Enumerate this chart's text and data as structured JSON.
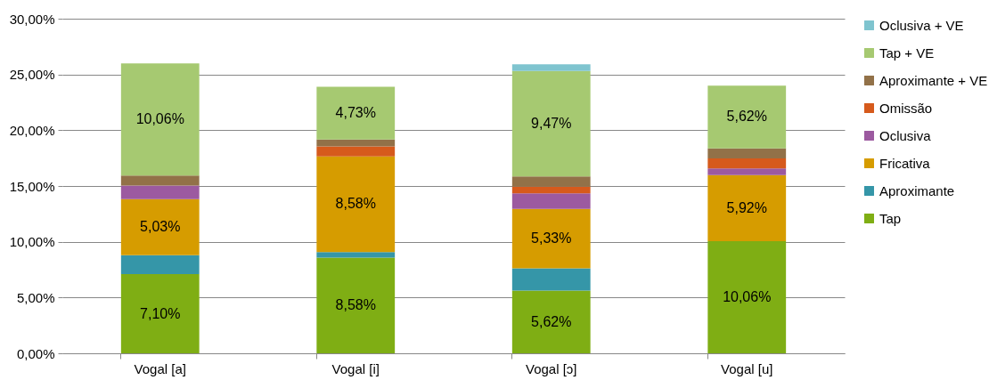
{
  "chart_data": {
    "type": "bar",
    "stacked": true,
    "categories": [
      "Vogal [a]",
      "Vogal [i]",
      "Vogal [ɔ]",
      "Vogal [u]"
    ],
    "series": [
      {
        "name": "Tap",
        "color": "#7fae14",
        "values": [
          7.1,
          8.58,
          5.62,
          10.06
        ],
        "value_labels": [
          "7,10%",
          "8,58%",
          "5,62%",
          "10,06%"
        ]
      },
      {
        "name": "Aproximante",
        "color": "#3596a8",
        "values": [
          1.7,
          0.5,
          2.0,
          0
        ],
        "value_labels": [
          null,
          null,
          null,
          null
        ]
      },
      {
        "name": "Fricativa",
        "color": "#d69c00",
        "values": [
          5.03,
          8.58,
          5.33,
          5.92
        ],
        "value_labels": [
          "5,03%",
          "8,58%",
          "5,33%",
          "5,92%"
        ]
      },
      {
        "name": "Oclusiva",
        "color": "#9c5aa0",
        "values": [
          1.2,
          0,
          1.4,
          0.6
        ],
        "value_labels": [
          null,
          null,
          null,
          null
        ]
      },
      {
        "name": "Omissão",
        "color": "#d65a1c",
        "values": [
          0,
          0.9,
          0.6,
          0.9
        ],
        "value_labels": [
          null,
          null,
          null,
          null
        ]
      },
      {
        "name": "Aproximante + VE",
        "color": "#927148",
        "values": [
          0.9,
          0.6,
          0.9,
          0.9
        ],
        "value_labels": [
          null,
          null,
          null,
          null
        ]
      },
      {
        "name": "Tap + VE",
        "color": "#a6c971",
        "values": [
          10.06,
          4.73,
          9.47,
          5.62
        ],
        "value_labels": [
          "10,06%",
          "4,73%",
          "9,47%",
          "5,62%"
        ]
      },
      {
        "name": "Oclusiva + VE",
        "color": "#7fc4cf",
        "values": [
          0,
          0,
          0.6,
          0
        ],
        "value_labels": [
          null,
          null,
          null,
          null
        ]
      }
    ],
    "ylim": [
      0,
      30
    ],
    "yticks": [
      {
        "value": 0,
        "label": "0,00%"
      },
      {
        "value": 5,
        "label": "5,00%"
      },
      {
        "value": 10,
        "label": "10,00%"
      },
      {
        "value": 15,
        "label": "15,00%"
      },
      {
        "value": 20,
        "label": "20,00%"
      },
      {
        "value": 25,
        "label": "25,00%"
      },
      {
        "value": 30,
        "label": "30,00%"
      }
    ],
    "grid": "y",
    "legend": "right"
  }
}
